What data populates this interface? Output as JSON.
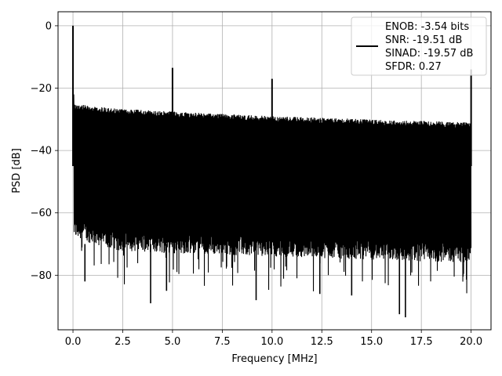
{
  "chart_data": {
    "type": "line",
    "xlabel": "Frequency [MHz]",
    "ylabel": "PSD [dB]",
    "xlim": [
      -0.75,
      21.0
    ],
    "ylim": [
      -97.5,
      4.5
    ],
    "xticks": [
      0.0,
      2.5,
      5.0,
      7.5,
      10.0,
      12.5,
      15.0,
      17.5,
      20.0
    ],
    "xtick_labels": [
      "0.0",
      "2.5",
      "5.0",
      "7.5",
      "10.0",
      "12.5",
      "15.0",
      "17.5",
      "20.0"
    ],
    "yticks": [
      0,
      -20,
      -40,
      -60,
      -80
    ],
    "ytick_labels": [
      "0",
      "−20",
      "−40",
      "−60",
      "−80"
    ],
    "grid": true,
    "legend_position": "top-right",
    "legend_lines": [
      "ENOB: -3.54 bits",
      "SNR: -19.51 dB",
      "SINAD: -19.57 dB",
      "SFDR: 0.27"
    ],
    "series": [
      {
        "color": "#000000",
        "noise_upper_db": [
          [
            0.05,
            -25
          ],
          [
            2.0,
            -26.5
          ],
          [
            5.0,
            -27.5
          ],
          [
            10.0,
            -29
          ],
          [
            15.0,
            -30
          ],
          [
            20.0,
            -31
          ]
        ],
        "noise_lower_db": [
          [
            0.05,
            -68
          ],
          [
            2.0,
            -72
          ],
          [
            5.0,
            -73
          ],
          [
            10.0,
            -74
          ],
          [
            15.0,
            -75
          ],
          [
            20.0,
            -76
          ]
        ],
        "spikes": [
          {
            "x": 0.0,
            "y": 0.0
          },
          {
            "x": 5.0,
            "y": -13.5
          },
          {
            "x": 10.0,
            "y": -17.0
          },
          {
            "x": 20.0,
            "y": -14.0
          }
        ],
        "deep_nulls": [
          {
            "x": 3.9,
            "y": -89.0
          },
          {
            "x": 9.2,
            "y": -88.0
          },
          {
            "x": 16.4,
            "y": -92.5
          },
          {
            "x": 16.7,
            "y": -93.5
          },
          {
            "x": 14.0,
            "y": -86.5
          },
          {
            "x": 12.4,
            "y": -86.0
          },
          {
            "x": 4.7,
            "y": -85.0
          },
          {
            "x": 0.6,
            "y": -82.0
          }
        ]
      }
    ]
  }
}
